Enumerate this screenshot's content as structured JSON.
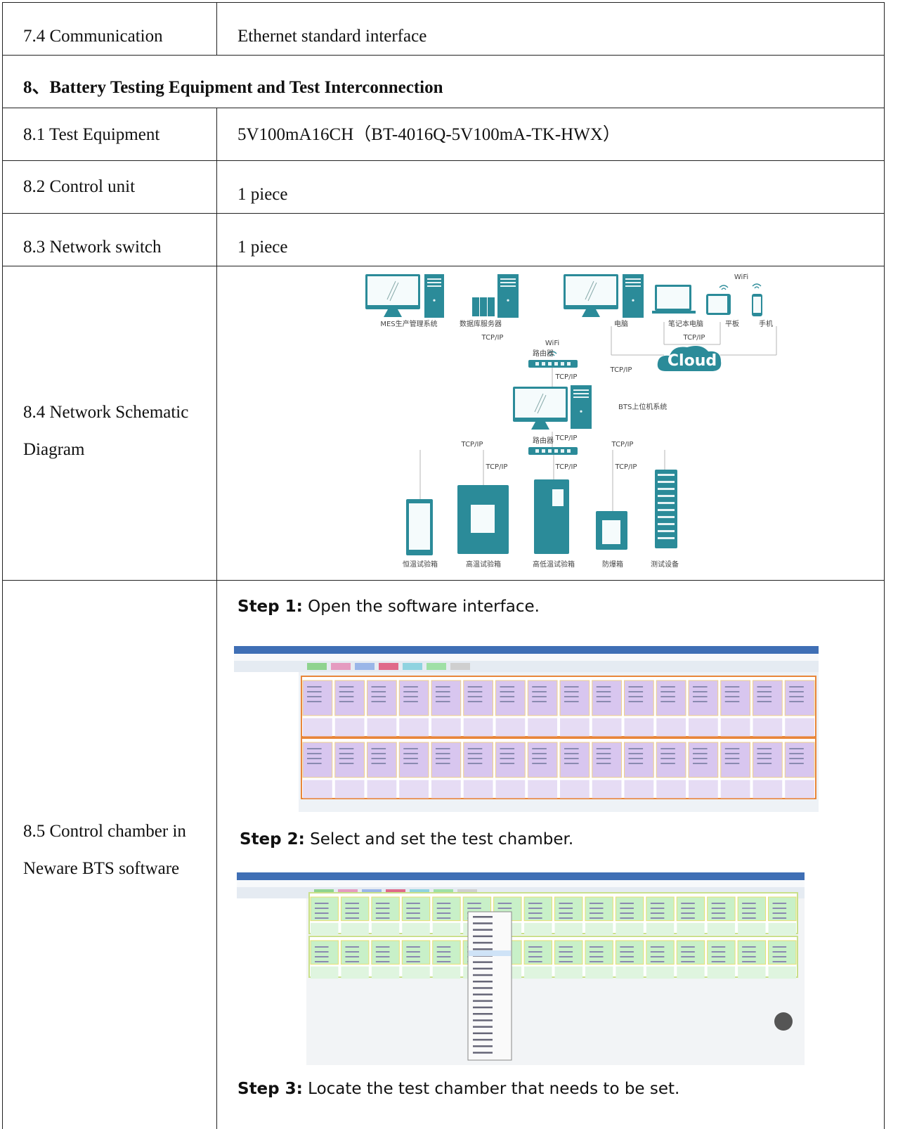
{
  "table": {
    "rows": [
      {
        "label": "7.4 Communication",
        "value": "Ethernet standard interface"
      },
      {
        "heading": "8、Battery Testing Equipment and Test Interconnection"
      },
      {
        "label": "8.1 Test Equipment",
        "value": "5V100mA16CH（BT-4016Q-5V100mA-TK-HWX）"
      },
      {
        "label": "8.2 Control unit",
        "value": "1 piece"
      },
      {
        "label": "8.3 Network switch",
        "value": "1 piece"
      },
      {
        "label": "8.4 Network Schematic Diagram",
        "diagram": {
          "labels": [
            "MES生产管理系统",
            "数据库服务器",
            "电脑",
            "笔记本电脑",
            "平板",
            "手机",
            "WiFi",
            "TCP/IP",
            "TCP/IP",
            "WiFi",
            "路由器",
            "Cloud",
            "TCP/IP",
            "TCP/IP",
            "BTS上位机系统",
            "路由器",
            "TCP/IP",
            "TCP/IP",
            "TCP/IP",
            "TCP/IP",
            "TCP/IP",
            "TCP/IP",
            "恒温试验箱",
            "高温试验箱",
            "高低温试验箱",
            "防爆箱",
            "测试设备"
          ]
        }
      },
      {
        "label": "8.5 Control chamber in Neware BTS software",
        "steps": [
          {
            "label": "Step 1:",
            "text": "Open the software interface."
          },
          {
            "label": "Step 2:",
            "text": "Select and set the test chamber."
          },
          {
            "label": "Step 3:",
            "text": "Locate the test chamber that needs to be set."
          }
        ]
      }
    ]
  }
}
